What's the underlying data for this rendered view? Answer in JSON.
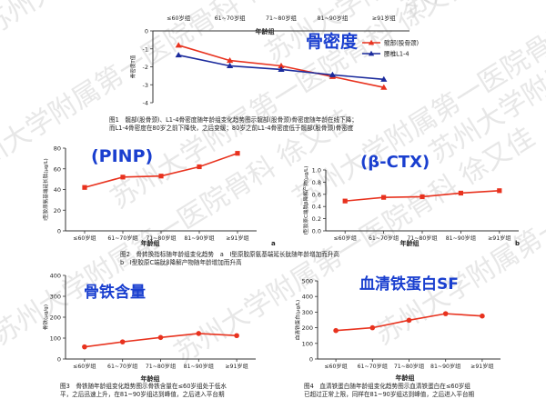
{
  "watermark": {
    "text": "苏州大学附属第一医院骨科 徐又佳",
    "color": "#c9c9c9"
  },
  "charts": [
    {
      "id": "fig1",
      "type": "line",
      "overlay_label": "骨密度",
      "overlay_color": "#1a3fcf",
      "title": "",
      "xlabel": "年龄组",
      "ylabel": "骨密度T值",
      "categories": [
        "≤60岁组",
        "61~70岁组",
        "71~80岁组",
        "81~90岁组",
        "≥91岁组"
      ],
      "ylim": [
        -4,
        0
      ],
      "yticks": [
        "0",
        "-1",
        "-2",
        "-3",
        "-4"
      ],
      "xaxis_position": "top",
      "legend": "right",
      "series": [
        {
          "name": "髋部(股骨颈)",
          "color": "#e8321e",
          "marker": "triangle",
          "values": [
            -0.8,
            -1.65,
            -1.95,
            -2.55,
            -3.15
          ]
        },
        {
          "name": "腰椎L1-4",
          "color": "#1a2a9c",
          "marker": "triangle",
          "values": [
            -1.35,
            -1.95,
            -2.15,
            -2.45,
            -2.7
          ]
        }
      ],
      "caption_lines": [
        "图1　髋部(股骨颈)、L1-4骨密度随年龄组变化趋势图示髋部(股骨颈)骨密度随年龄在线下降；",
        "而L1-4骨密度在80岁之前下降快，之后变缓；80岁之前L1-4骨密度低于髋部(股骨颈)骨密度"
      ]
    },
    {
      "id": "fig2a",
      "type": "line",
      "overlay_label": "(PⅠNP)",
      "overlay_color": "#1a3fcf",
      "xlabel": "年龄组",
      "ylabel": "Ⅰ型胶原氨基端延长肽(µg/L)",
      "categories": [
        "≤60岁组",
        "61~70岁组",
        "71~80岁组",
        "81~90岁组",
        "≥91岁组"
      ],
      "ylim": [
        0,
        80
      ],
      "yticks": [
        "0",
        "20",
        "40",
        "60",
        "80"
      ],
      "panel_letter": "a",
      "series": [
        {
          "name": "PⅠNP",
          "color": "#e8321e",
          "marker": "square",
          "values": [
            42,
            52,
            53,
            62,
            75
          ]
        }
      ]
    },
    {
      "id": "fig2b",
      "type": "line",
      "overlay_label": "(β-CTX)",
      "overlay_color": "#1a3fcf",
      "xlabel": "年龄组",
      "ylabel": "Ⅰ型胶原C端肽β降解产物(µg/L)",
      "categories": [
        "≤60岁组",
        "61~70岁组",
        "71~80岁组",
        "81~90岁组",
        "≥91岁组"
      ],
      "ylim": [
        0.0,
        1.0
      ],
      "yticks": [
        "0.0",
        "0.2",
        "0.4",
        "0.6",
        "0.8",
        "1.0"
      ],
      "panel_letter": "b",
      "series": [
        {
          "name": "β-CTX",
          "color": "#e8321e",
          "marker": "square",
          "values": [
            0.49,
            0.55,
            0.56,
            0.62,
            0.66
          ]
        }
      ],
      "caption_lines": [
        "图2　骨转换指标随年龄组变化趋势　a　Ⅰ型原胶原氨基端延长肽随年龄增加而升高",
        "b　Ⅰ型胶原C端肽β降解产物随年龄增加而升高"
      ]
    },
    {
      "id": "fig3",
      "type": "line",
      "overlay_label": "骨铁含量",
      "overlay_color": "#1a3fcf",
      "xlabel": "年龄组",
      "ylabel": "骨铁(µg/g)",
      "categories": [
        "≤60岁组",
        "61~70岁组",
        "71~80岁组",
        "81~90岁组",
        "≥91岁组"
      ],
      "ylim": [
        0,
        400
      ],
      "yticks": [
        "0",
        "100",
        "200",
        "300",
        "400"
      ],
      "series": [
        {
          "name": "骨铁",
          "color": "#e8321e",
          "marker": "circle",
          "values": [
            58,
            82,
            103,
            122,
            112
          ]
        }
      ],
      "caption_lines": [
        "图3　骨铁随年龄组变化趋势图示骨铁含量在≤60岁组处于低水",
        "平，之后迅速上升，在81~90岁组达到峰值，之后进入平台期"
      ]
    },
    {
      "id": "fig4",
      "type": "line",
      "overlay_label": "血清铁蛋白SF",
      "overlay_color": "#1a3fcf",
      "xlabel": "年龄组",
      "ylabel": "血清铁蛋白(µg/L)",
      "categories": [
        "≤60岁组",
        "61~70岁组",
        "71~80岁组",
        "81~90岁组",
        "≥91岁组"
      ],
      "ylim": [
        0,
        500
      ],
      "yticks": [
        "0",
        "100",
        "200",
        "300",
        "400",
        "500"
      ],
      "series": [
        {
          "name": "SF",
          "color": "#e8321e",
          "marker": "circle",
          "values": [
            182,
            200,
            248,
            290,
            275
          ]
        }
      ],
      "caption_lines": [
        "图4　血清铁蛋白随年龄组变化趋势图示血清铁蛋白在≤60岁组",
        "已超过正常上限，同样在81~90岁组达到峰值，之后进入平台期"
      ]
    }
  ]
}
